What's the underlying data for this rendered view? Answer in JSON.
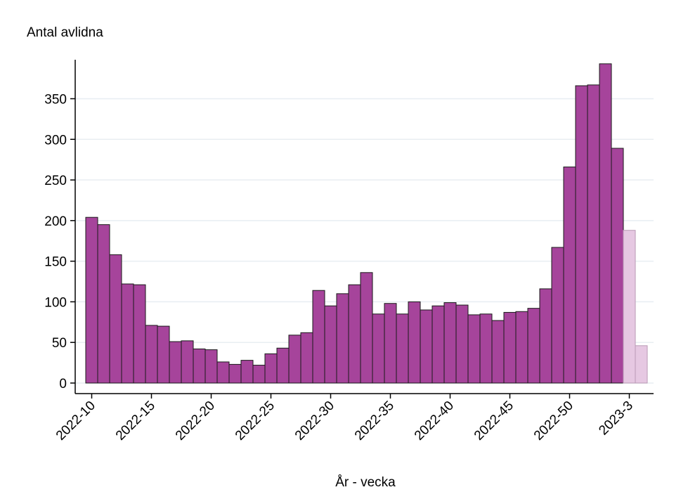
{
  "chart_data": {
    "type": "bar",
    "y_label": "Antal avlidna",
    "x_label": "År - vecka",
    "categories": [
      "2022-10",
      null,
      null,
      null,
      null,
      "2022-15",
      null,
      null,
      null,
      null,
      "2022-20",
      null,
      null,
      null,
      null,
      "2022-25",
      null,
      null,
      null,
      null,
      "2022-30",
      null,
      null,
      null,
      null,
      "2022-35",
      null,
      null,
      null,
      null,
      "2022-40",
      null,
      null,
      null,
      null,
      "2022-45",
      null,
      null,
      null,
      null,
      "2022-50",
      null,
      null,
      null,
      null,
      "2023-3",
      null
    ],
    "values": [
      204,
      195,
      158,
      122,
      121,
      71,
      70,
      51,
      52,
      42,
      41,
      26,
      23,
      28,
      22,
      36,
      43,
      59,
      62,
      114,
      95,
      110,
      121,
      136,
      85,
      98,
      85,
      100,
      90,
      95,
      99,
      96,
      84,
      85,
      77,
      87,
      88,
      92,
      116,
      167,
      266,
      366,
      367,
      393,
      289,
      188,
      46
    ],
    "colors": [
      "#a6449b",
      "#a6449b",
      "#a6449b",
      "#a6449b",
      "#a6449b",
      "#a6449b",
      "#a6449b",
      "#a6449b",
      "#a6449b",
      "#a6449b",
      "#a6449b",
      "#a6449b",
      "#a6449b",
      "#a6449b",
      "#a6449b",
      "#a6449b",
      "#a6449b",
      "#a6449b",
      "#a6449b",
      "#a6449b",
      "#a6449b",
      "#a6449b",
      "#a6449b",
      "#a6449b",
      "#a6449b",
      "#a6449b",
      "#a6449b",
      "#a6449b",
      "#a6449b",
      "#a6449b",
      "#a6449b",
      "#a6449b",
      "#a6449b",
      "#a6449b",
      "#a6449b",
      "#a6449b",
      "#a6449b",
      "#a6449b",
      "#a6449b",
      "#a6449b",
      "#a6449b",
      "#a6449b",
      "#a6449b",
      "#a6449b",
      "#a6449b",
      "#e6c8e2",
      "#e6c8e2"
    ],
    "ylim": [
      -13,
      398
    ],
    "yticks": [
      0,
      50,
      100,
      150,
      200,
      250,
      300,
      350
    ],
    "grid": true
  }
}
